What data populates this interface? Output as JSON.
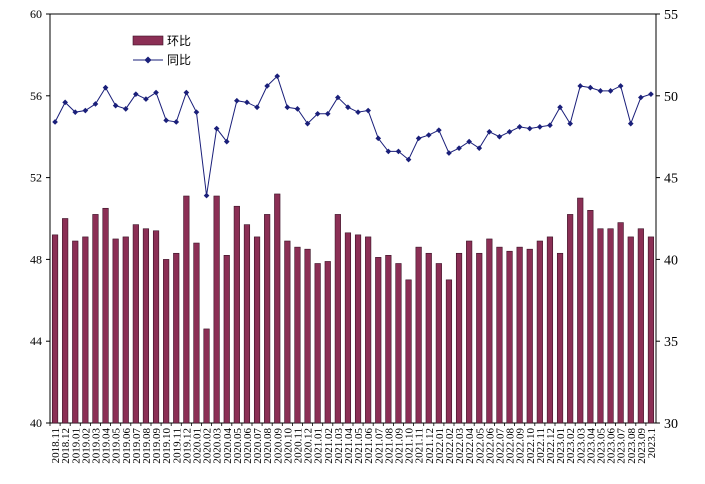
{
  "chart_data": {
    "type": "bar+line",
    "colors": {
      "bar_fill": "#8B2F55",
      "bar_stroke": "#3a1226",
      "line": "#1a1f7a",
      "marker": "#1a1f7a",
      "axis": "#000000"
    },
    "categories": [
      "2018.11",
      "2018.12",
      "2019.01",
      "2019.02",
      "2019.03",
      "2019.04",
      "2019.05",
      "2019.06",
      "2019.07",
      "2019.08",
      "2019.09",
      "2019.10",
      "2019.11",
      "2019.12",
      "2020.01",
      "2020.02",
      "2020.03",
      "2020.04",
      "2020.05",
      "2020.06",
      "2020.07",
      "2020.08",
      "2020.09",
      "2020.10",
      "2020.11",
      "2020.12",
      "2021.01",
      "2021.02",
      "2021.03",
      "2021.04",
      "2021.05",
      "2021.06",
      "2021.07",
      "2021.08",
      "2021.09",
      "2021.10",
      "2021.11",
      "2021.12",
      "2022.01",
      "2022.02",
      "2022.03",
      "2022.04",
      "2022.05",
      "2022.06",
      "2022.07",
      "2022.08",
      "2022.09",
      "2022.10",
      "2022.11",
      "2022.12",
      "2023.01",
      "2023.02",
      "2023.03",
      "2023.04",
      "2023.05",
      "2023.06",
      "2023.07",
      "2023.08",
      "2023.09",
      "2023.1"
    ],
    "series": [
      {
        "name": "环比",
        "type": "bar",
        "axis": "left",
        "values": [
          49.2,
          50.0,
          48.9,
          49.1,
          50.2,
          50.5,
          49.0,
          49.1,
          49.7,
          49.5,
          49.4,
          48.0,
          48.3,
          51.1,
          48.8,
          44.6,
          51.1,
          48.2,
          50.6,
          49.7,
          49.1,
          50.2,
          51.2,
          48.9,
          48.6,
          48.5,
          47.8,
          47.9,
          50.2,
          49.3,
          49.2,
          49.1,
          48.1,
          48.2,
          47.8,
          47.0,
          48.6,
          48.3,
          47.8,
          47.0,
          48.3,
          48.9,
          48.3,
          49.0,
          48.6,
          48.4,
          48.6,
          48.5,
          48.9,
          49.1,
          48.3,
          50.2,
          51.0,
          50.4,
          49.5,
          49.5,
          49.8,
          49.1,
          49.5,
          49.1
        ]
      },
      {
        "name": "同比",
        "type": "line",
        "axis": "right",
        "values": [
          48.4,
          49.6,
          49.0,
          49.1,
          49.5,
          50.5,
          49.4,
          49.2,
          50.1,
          49.8,
          50.2,
          48.5,
          48.4,
          50.2,
          49.0,
          43.9,
          48.0,
          47.2,
          49.7,
          49.6,
          49.3,
          50.6,
          51.2,
          49.3,
          49.2,
          48.3,
          48.9,
          48.9,
          49.9,
          49.3,
          49.0,
          49.1,
          47.4,
          46.6,
          46.6,
          46.1,
          47.4,
          47.6,
          47.9,
          46.5,
          46.8,
          47.2,
          46.8,
          47.8,
          47.5,
          47.8,
          48.1,
          48.0,
          48.1,
          48.2,
          49.3,
          48.3,
          50.6,
          50.5,
          50.3,
          50.3,
          50.6,
          48.3,
          49.9,
          50.1
        ]
      }
    ],
    "left_axis": {
      "min": 40,
      "max": 60,
      "ticks": [
        "40",
        "44",
        "48",
        "52",
        "56",
        "60"
      ]
    },
    "right_axis": {
      "min": 30,
      "max": 55,
      "ticks": [
        "30",
        "35",
        "40",
        "45",
        "50",
        "55"
      ]
    },
    "legend": {
      "placement": "top-left",
      "items": [
        "环比",
        "同比"
      ]
    },
    "grid": false
  }
}
